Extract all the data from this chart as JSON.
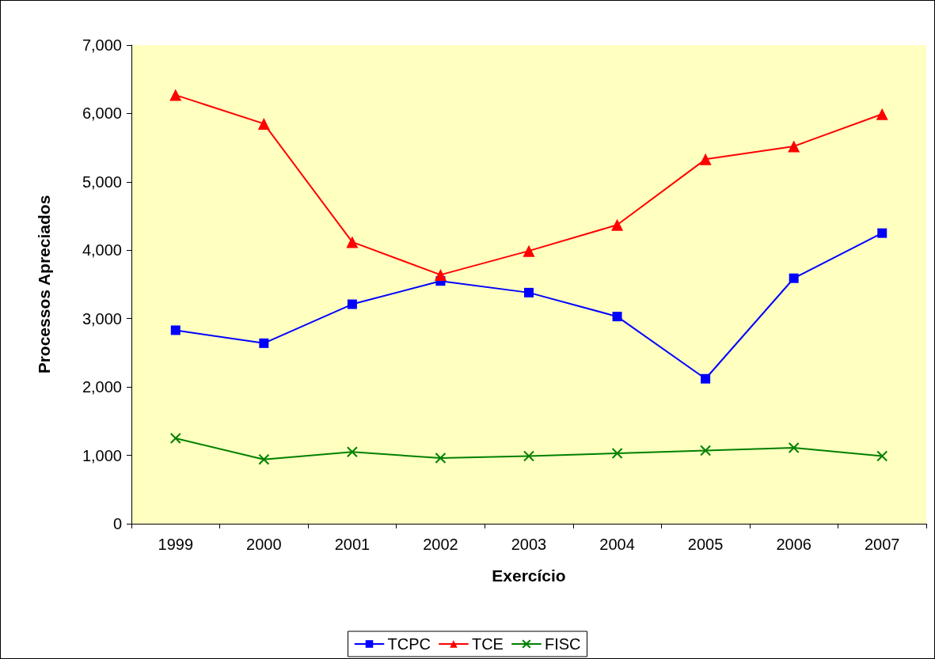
{
  "chart_data": {
    "type": "line",
    "xlabel": "Exercício",
    "ylabel": "Processos Apreciados",
    "categories": [
      "1999",
      "2000",
      "2001",
      "2002",
      "2003",
      "2004",
      "2005",
      "2006",
      "2007"
    ],
    "series": [
      {
        "name": "TCPC",
        "color": "#0000ff",
        "marker": "square",
        "values": [
          2830,
          2640,
          3210,
          3550,
          3380,
          3030,
          2120,
          3590,
          4250
        ]
      },
      {
        "name": "TCE",
        "color": "#ff0000",
        "marker": "triangle",
        "values": [
          6270,
          5850,
          4120,
          3640,
          3990,
          4370,
          5330,
          5520,
          5990
        ]
      },
      {
        "name": "FISC",
        "color": "#008000",
        "marker": "cross",
        "values": [
          1250,
          940,
          1050,
          960,
          990,
          1030,
          1070,
          1110,
          990
        ]
      }
    ],
    "ylim": [
      0,
      7000
    ],
    "yticks": [
      0,
      {
        "value": 1000,
        "label": "1,000"
      },
      {
        "value": 2000,
        "label": "2,000"
      },
      {
        "value": 3000,
        "label": "3,000"
      },
      {
        "value": 4000,
        "label": "4,000"
      },
      {
        "value": 5000,
        "label": "5,000"
      },
      {
        "value": 6000,
        "label": "6,000"
      },
      {
        "value": 7000,
        "label": "7,000"
      }
    ],
    "grid": false,
    "legend": "bottom",
    "line_style": "solid"
  }
}
